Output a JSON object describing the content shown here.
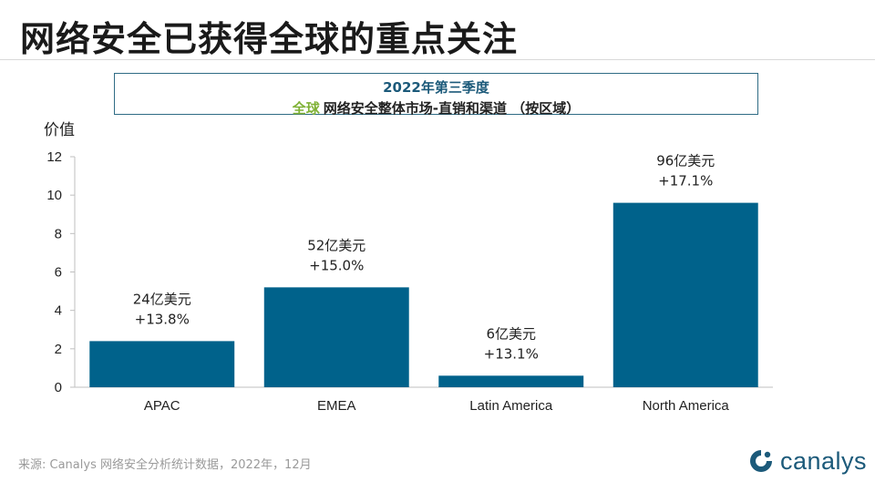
{
  "page": {
    "title": "网络安全已获得全球的重点关注"
  },
  "chart_box": {
    "period": "2022年第三季度",
    "scope": "全球",
    "subtitle": "网络安全整体市场-直销和渠道 （按区域）"
  },
  "footer": {
    "source": "来源: Canalys 网络安全分析统计数据，2022年，12月",
    "logo_text": "canalys"
  },
  "colors": {
    "bar": "#00628b",
    "scope_green": "#7fb135",
    "brand": "#1c5a7a"
  },
  "chart_data": {
    "type": "bar",
    "title": "2022年第三季度 全球 网络安全整体市场-直销和渠道 （按区域）",
    "ylabel": "价值",
    "xlabel": "",
    "ylim": [
      0,
      12
    ],
    "yticks": [
      0,
      2,
      4,
      6,
      8,
      10,
      12
    ],
    "grid": false,
    "categories": [
      "APAC",
      "EMEA",
      "Latin America",
      "North America"
    ],
    "values": [
      2.4,
      5.2,
      0.6,
      9.6
    ],
    "value_labels": [
      "24亿美元",
      "52亿美元",
      "6亿美元",
      "96亿美元"
    ],
    "growth_labels": [
      "+13.8%",
      "+15.0%",
      "+13.1%",
      "+17.1%"
    ]
  }
}
